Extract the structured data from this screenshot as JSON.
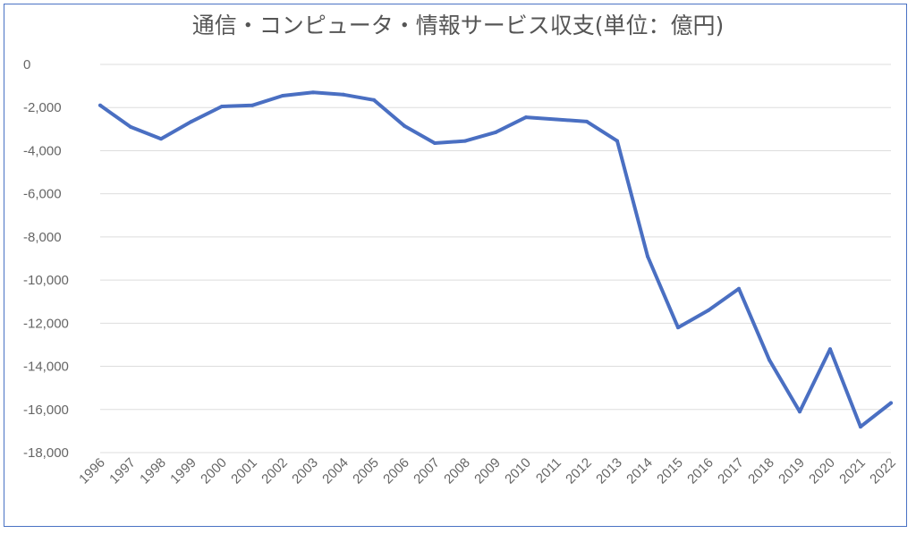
{
  "chart_data": {
    "type": "line",
    "title": "通信・コンピュータ・情報サービス収支(単位：億円)",
    "xlabel": "",
    "ylabel": "",
    "x": [
      "1996",
      "1997",
      "1998",
      "1999",
      "2000",
      "2001",
      "2002",
      "2003",
      "2004",
      "2005",
      "2006",
      "2007",
      "2008",
      "2009",
      "2010",
      "2011",
      "2012",
      "2013",
      "2014",
      "2015",
      "2016",
      "2017",
      "2018",
      "2019",
      "2020",
      "2021",
      "2022"
    ],
    "series": [
      {
        "values": [
          -1900,
          -2900,
          -3450,
          -2650,
          -1950,
          -1900,
          -1450,
          -1300,
          -1400,
          -1650,
          -2850,
          -3650,
          -3550,
          -3150,
          -2450,
          -2550,
          -2650,
          -3550,
          -8900,
          -12200,
          -11400,
          -10400,
          -13700,
          -16100,
          -13200,
          -16800,
          -15700
        ]
      }
    ],
    "ylim": [
      -18000,
      0
    ],
    "yticks": [
      0,
      -2000,
      -4000,
      -6000,
      -8000,
      -10000,
      -12000,
      -14000,
      -16000,
      -18000
    ],
    "ytick_labels": [
      "0",
      "-2,000",
      "-4,000",
      "-6,000",
      "-8,000",
      "-10,000",
      "-12,000",
      "-14,000",
      "-16,000",
      "-18,000"
    ],
    "grid": true,
    "legend": "none",
    "colors": {
      "line": "#4a6fc2",
      "grid": "#dddddd",
      "text": "#666666",
      "frame": "#4a72c4"
    }
  }
}
